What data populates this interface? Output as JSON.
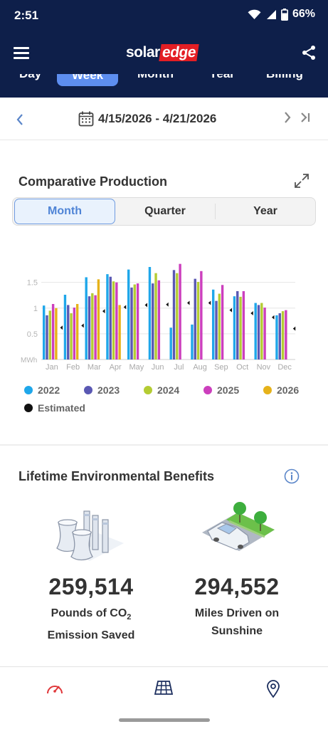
{
  "status_bar": {
    "time": "2:51",
    "battery": "66%"
  },
  "header": {
    "logo_part1": "solar",
    "logo_part2": "edge"
  },
  "period_tabs": [
    "Day",
    "Week",
    "Month",
    "Year",
    "Billing"
  ],
  "active_period": "Week",
  "date_range": "4/15/2026 - 4/21/2026",
  "production_card": {
    "title": "Comparative Production",
    "segments": [
      "Month",
      "Quarter",
      "Year"
    ],
    "active_segment": "Month"
  },
  "chart_data": {
    "type": "bar",
    "ylabel": "MWh",
    "yticks": [
      "0.5",
      "1",
      "1.5"
    ],
    "ylim": [
      0,
      1.8
    ],
    "categories": [
      "Jan",
      "Feb",
      "Mar",
      "Apr",
      "May",
      "Jun",
      "Jul",
      "Aug",
      "Sep",
      "Oct",
      "Nov",
      "Dec"
    ],
    "series": [
      {
        "name": "2022",
        "color": "#1fa7ea",
        "values": [
          1.05,
          1.26,
          1.6,
          1.66,
          1.75,
          1.8,
          0.62,
          0.68,
          1.36,
          1.23,
          1.1,
          0.86
        ]
      },
      {
        "name": "2023",
        "color": "#5a58b3",
        "values": [
          0.86,
          1.06,
          1.23,
          1.61,
          1.4,
          1.48,
          1.74,
          1.57,
          1.14,
          1.33,
          1.06,
          0.9
        ]
      },
      {
        "name": "2024",
        "color": "#b4cc33",
        "values": [
          0.95,
          0.9,
          1.29,
          1.52,
          1.46,
          1.68,
          1.68,
          1.51,
          1.28,
          1.22,
          1.1,
          0.94
        ]
      },
      {
        "name": "2025",
        "color": "#cc3fbd",
        "values": [
          1.08,
          1.01,
          1.25,
          1.5,
          1.48,
          1.54,
          1.86,
          1.72,
          1.45,
          1.33,
          1.01,
          0.96
        ]
      },
      {
        "name": "2026",
        "color": "#e6b21a",
        "values": [
          1.0,
          1.08,
          1.56,
          1.06,
          null,
          null,
          null,
          null,
          null,
          null,
          null,
          null
        ]
      }
    ],
    "estimated": {
      "name": "Estimated",
      "color": "#111111",
      "values": [
        0.62,
        0.66,
        0.94,
        1.02,
        1.06,
        1.07,
        1.1,
        1.1,
        0.96,
        0.9,
        0.82,
        0.6
      ]
    }
  },
  "legend": {
    "items": [
      {
        "label": "2022",
        "color": "#1fa7ea"
      },
      {
        "label": "2023",
        "color": "#5a58b3"
      },
      {
        "label": "2024",
        "color": "#b4cc33"
      },
      {
        "label": "2025",
        "color": "#cc3fbd"
      },
      {
        "label": "2026",
        "color": "#e6b21a"
      },
      {
        "label": "Estimated",
        "color": "#111111"
      }
    ]
  },
  "benefits": {
    "title": "Lifetime Environmental Benefits",
    "co2": {
      "value": "259,514",
      "label_line1": "Pounds of CO",
      "label_sub": "2",
      "label_line2": "Emission Saved"
    },
    "miles": {
      "value": "294,552",
      "label_line1": "Miles Driven on",
      "label_line2": "Sunshine"
    }
  },
  "icons": {
    "status": [
      "wifi-icon",
      "signal-icon",
      "battery-icon"
    ],
    "header": [
      "hamburger-menu-icon",
      "share-icon"
    ],
    "nav": [
      "dashboard-gauge-icon",
      "solar-panel-layout-icon",
      "location-pin-icon"
    ]
  },
  "colors": {
    "brand_navy": "#0e1f4a",
    "brand_red": "#e31e24",
    "accent_blue": "#5b86c9",
    "nav_active": "#e0373a"
  }
}
